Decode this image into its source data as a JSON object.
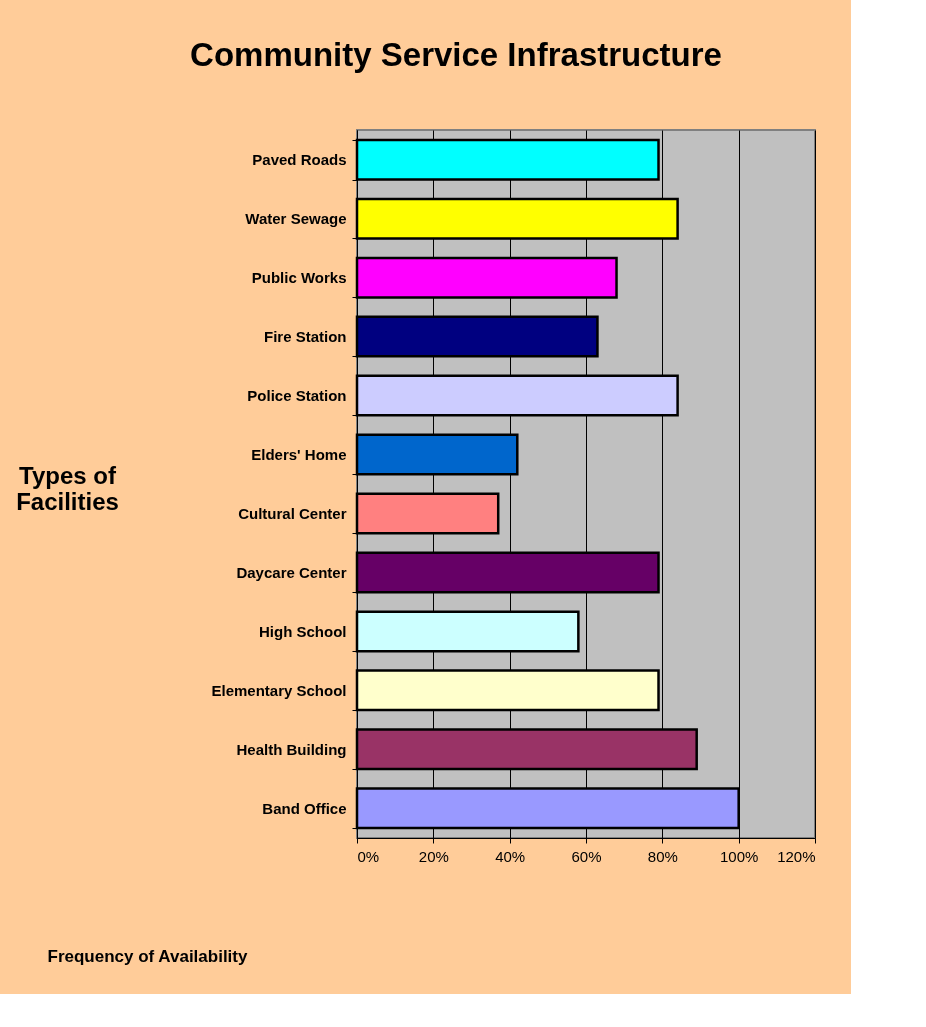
{
  "chart_data": {
    "type": "bar",
    "orientation": "horizontal",
    "title": "Community Service Infrastructure",
    "xlabel": "Frequency of Availability",
    "ylabel": "Types of\nFacilities",
    "categories": [
      "Paved Roads",
      "Water Sewage",
      "Public Works",
      "Fire Station",
      "Police Station",
      "Elders' Home",
      "Cultural Center",
      "Daycare Center",
      "High School",
      "Elementary School",
      "Health Building",
      "Band Office"
    ],
    "values": [
      79,
      84,
      68,
      63,
      84,
      42,
      37,
      79,
      58,
      79,
      89,
      100
    ],
    "colors": [
      "#00ffff",
      "#ffff00",
      "#ff00ff",
      "#000080",
      "#ccccff",
      "#0066cc",
      "#ff8080",
      "#660066",
      "#ccffff",
      "#ffffcc",
      "#993366",
      "#9999ff"
    ],
    "xlim": [
      0,
      120
    ],
    "xticks": [
      {
        "value": 0,
        "label": "0%"
      },
      {
        "value": 20,
        "label": "20%"
      },
      {
        "value": 40,
        "label": "40%"
      },
      {
        "value": 60,
        "label": "60%"
      },
      {
        "value": 80,
        "label": "80%"
      },
      {
        "value": 100,
        "label": "100%"
      },
      {
        "value": 120,
        "label": "120%"
      }
    ],
    "grid": "x",
    "legend": false
  }
}
